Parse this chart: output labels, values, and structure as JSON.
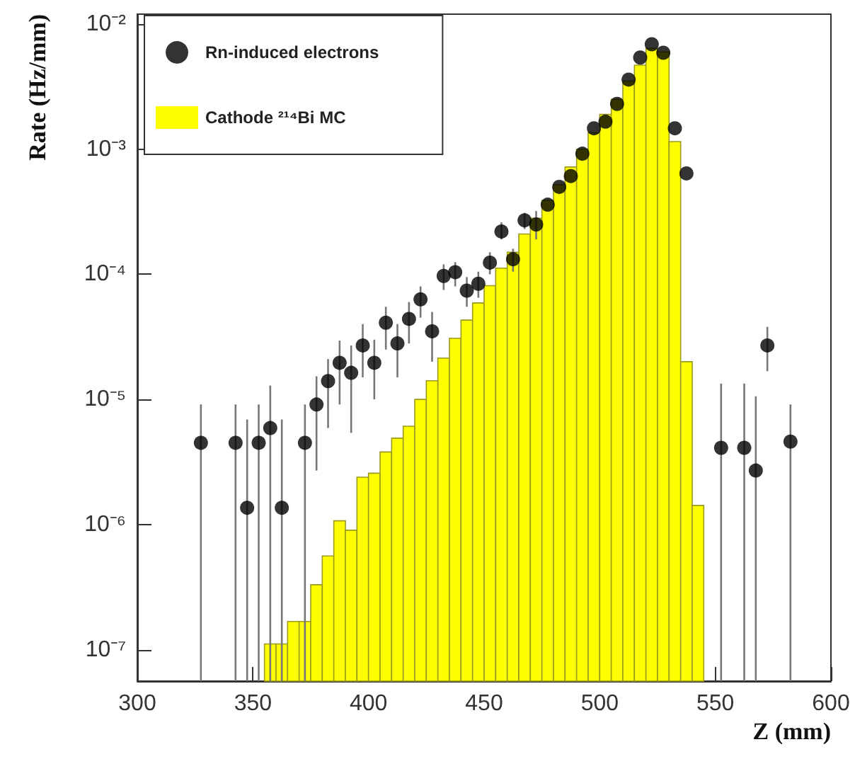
{
  "chart_data": {
    "type": "scatter",
    "xlabel": "Z (mm)",
    "ylabel": "Rate (Hz/mm)",
    "log": "y",
    "grid": false,
    "legend": "top left",
    "marker": "circle",
    "xlim": [
      300,
      600
    ],
    "xticks": [
      300,
      350,
      400,
      450,
      500,
      550,
      600
    ],
    "ylim": [
      5.6e-08,
      0.012
    ],
    "yticks": [
      {
        "value": 1e-07,
        "label": "10⁻⁷"
      },
      {
        "value": 1e-06,
        "label": "10⁻⁶"
      },
      {
        "value": 1e-05,
        "label": "10⁻⁵"
      },
      {
        "value": 0.0001,
        "label": "10⁻⁴"
      },
      {
        "value": 0.001,
        "label": "10⁻³"
      },
      {
        "value": 0.01,
        "label": "10⁻²"
      }
    ],
    "series": [
      {
        "type": "scatter",
        "name": "Rn-induced electrons",
        "color": "#000000",
        "x": [
          327.5,
          342.5,
          347.5,
          352.5,
          357.5,
          362.5,
          372.5,
          377.5,
          382.5,
          387.5,
          392.5,
          397.5,
          402.5,
          407.5,
          412.5,
          417.5,
          422.5,
          427.5,
          432.5,
          437.5,
          442.5,
          447.5,
          452.5,
          457.5,
          462.5,
          467.5,
          472.5,
          477.5,
          482.5,
          487.5,
          492.5,
          497.5,
          502.5,
          507.5,
          512.5,
          517.5,
          522.5,
          527.5,
          532.5,
          537.5,
          552.5,
          562.5,
          567.5,
          572.5,
          582.5
        ],
        "values": [
          4.5e-06,
          4.5e-06,
          1.36e-06,
          4.5e-06,
          5.9e-06,
          1.36e-06,
          4.5e-06,
          9.1e-06,
          1.4e-05,
          1.96e-05,
          1.63e-05,
          2.7e-05,
          1.96e-05,
          4.1e-05,
          2.8e-05,
          4.4e-05,
          6.3e-05,
          3.5e-05,
          9.7e-05,
          0.000104,
          7.4e-05,
          8.4e-05,
          0.000124,
          0.00022,
          0.000132,
          0.00027,
          0.00025,
          0.00036,
          0.0005,
          0.00061,
          0.00092,
          0.00147,
          0.00166,
          0.0023,
          0.0036,
          0.0054,
          0.0069,
          0.0059,
          0.00147,
          0.00064,
          4.1e-06,
          4.1e-06,
          2.7e-06,
          2.7e-05,
          4.6e-06
        ],
        "errors": [
          [
            5.6e-08,
            9.1e-06
          ],
          [
            5.6e-08,
            9.1e-06
          ],
          [
            5.6e-08,
            6.9e-06
          ],
          [
            5.6e-08,
            9.1e-06
          ],
          [
            5.6e-08,
            1.29e-05
          ],
          [
            5.6e-08,
            6.9e-06
          ],
          [
            5.6e-08,
            9.1e-06
          ],
          [
            2.7e-06,
            1.53e-05
          ],
          [
            5.9e-06,
            2.1e-05
          ],
          [
            9.1e-06,
            2.95e-05
          ],
          [
            5.4e-06,
            2.7e-05
          ],
          [
            1.5e-05,
            4e-05
          ],
          [
            1e-05,
            3e-05
          ],
          [
            2.5e-05,
            5.5e-05
          ],
          [
            1.5e-05,
            4e-05
          ],
          [
            2.8e-05,
            6e-05
          ],
          [
            4.5e-05,
            8e-05
          ],
          [
            2e-05,
            5e-05
          ],
          [
            7.5e-05,
            0.00012
          ],
          [
            8e-05,
            0.000125
          ],
          [
            5.5e-05,
            9.5e-05
          ],
          [
            6.5e-05,
            0.000105
          ],
          [
            0.0001,
            0.00015
          ],
          [
            0.00019,
            0.00026
          ],
          [
            0.000105,
            0.00016
          ],
          [
            0.00023,
            0.00031
          ],
          [
            0.00019,
            0.00032
          ],
          null,
          null,
          null,
          null,
          null,
          null,
          null,
          null,
          null,
          null,
          null,
          null,
          null,
          [
            5.6e-08,
            1.34e-05
          ],
          [
            5.6e-08,
            1.34e-05
          ],
          [
            5.6e-08,
            1.06e-05
          ],
          [
            1.68e-05,
            3.8e-05
          ],
          [
            5.6e-08,
            9.1e-06
          ]
        ]
      },
      {
        "type": "histogram",
        "name": "Cathode ²¹⁴Bi MC",
        "color": "#ffff00",
        "bins": [
          355,
          360,
          365,
          370,
          375,
          380,
          385,
          390,
          395,
          400,
          405,
          410,
          415,
          420,
          425,
          430,
          435,
          440,
          445,
          450,
          455,
          460,
          465,
          470,
          475,
          480,
          485,
          490,
          495,
          500,
          505,
          510,
          515,
          520,
          525,
          530,
          535,
          540,
          545
        ],
        "values": [
          1.11e-07,
          1.11e-07,
          1.68e-07,
          1.68e-07,
          3.3e-07,
          5.6e-07,
          1.07e-06,
          9e-07,
          2.39e-06,
          2.57e-06,
          3.8e-06,
          4.9e-06,
          6.1e-06,
          1e-05,
          1.41e-05,
          2.14e-05,
          3.08e-05,
          4.3e-05,
          5.9e-05,
          8.1e-05,
          0.000112,
          0.00015,
          0.00021,
          0.00028,
          0.00039,
          0.00052,
          0.00072,
          0.001,
          0.00135,
          0.0019,
          0.0025,
          0.0035,
          0.0047,
          0.0064,
          0.006,
          0.00115,
          2e-05,
          1.42e-06
        ]
      }
    ]
  }
}
